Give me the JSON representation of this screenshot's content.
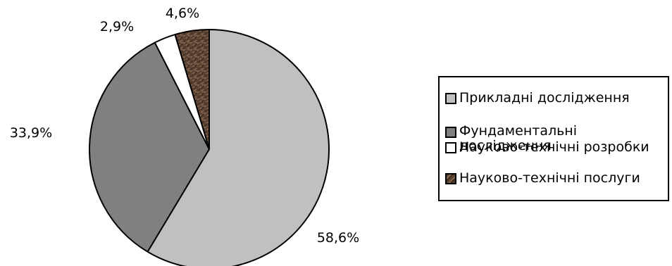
{
  "chart_data": {
    "type": "pie",
    "start_angle_deg": 0,
    "direction": "clockwise",
    "slices": [
      {
        "label": "Прикладні дослідження",
        "value": 58.6,
        "value_label": "58,6%",
        "color": "#c0c0c0",
        "pattern": "solid"
      },
      {
        "label": "Фундаментальні дослідження",
        "value": 33.9,
        "value_label": "33,9%",
        "color": "#808080",
        "pattern": "solid"
      },
      {
        "label": "Науково-технічні розробки",
        "value": 2.9,
        "value_label": "2,9%",
        "color": "#ffffff",
        "pattern": "solid"
      },
      {
        "label": "Науково-технічні послуги",
        "value": 4.6,
        "value_label": "4,6%",
        "color": "#5a4232",
        "pattern": "texture"
      }
    ],
    "legend_position": "right"
  }
}
